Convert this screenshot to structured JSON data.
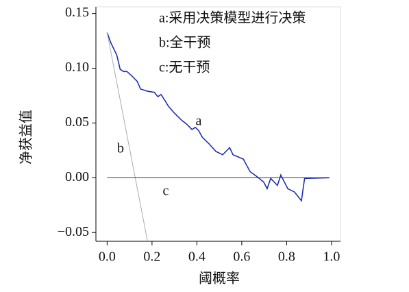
{
  "chart_data": {
    "type": "line",
    "xlabel": "阈概率",
    "ylabel": "净获益值",
    "legend_entries": [
      "a:采用决策模型进行决策",
      "b:全干预",
      "c:无干预"
    ],
    "annotations": [
      "a",
      "b",
      "c"
    ],
    "xlim": [
      -0.05,
      1.04
    ],
    "ylim": [
      -0.058,
      0.156
    ],
    "xticks": [
      {
        "value": 0,
        "label": "0.0"
      },
      0.2,
      0.4,
      0.6,
      0.8,
      {
        "value": 1,
        "label": "1.0"
      }
    ],
    "yticks": [
      {
        "value": -0.05,
        "label": "−0.05"
      },
      {
        "value": 0,
        "label": "0.00"
      },
      0.05,
      {
        "value": 0.1,
        "label": "0.10"
      },
      0.15
    ],
    "series": [
      {
        "name": "a",
        "color": "#1f2fb5",
        "x": [
          0,
          0.018,
          0.043,
          0.058,
          0.073,
          0.088,
          0.11,
          0.134,
          0.149,
          0.18,
          0.21,
          0.226,
          0.24,
          0.256,
          0.274,
          0.3,
          0.332,
          0.354,
          0.378,
          0.393,
          0.408,
          0.424,
          0.454,
          0.485,
          0.515,
          0.546,
          0.561,
          0.607,
          0.637,
          0.668,
          0.698,
          0.713,
          0.729,
          0.759,
          0.774,
          0.805,
          0.835,
          0.866,
          0.88,
          0.99
        ],
        "values": [
          0.1325,
          0.1225,
          0.112,
          0.099,
          0.097,
          0.097,
          0.093,
          0.088,
          0.081,
          0.079,
          0.078,
          0.074,
          0.076,
          0.071,
          0.065,
          0.059,
          0.0525,
          0.049,
          0.044,
          0.046,
          0.043,
          0.037,
          0.031,
          0.024,
          0.021,
          0.0275,
          0.021,
          0.017,
          0.0056,
          0.001,
          -0.004,
          -0.01,
          -0.0006,
          -0.007,
          0.0025,
          -0.01,
          -0.013,
          -0.021,
          -0.0006,
          0
        ]
      },
      {
        "name": "b",
        "color": "#aaaaaa",
        "x": [
          0,
          0.18
        ],
        "values": [
          0.1325,
          -0.058
        ]
      },
      {
        "name": "c",
        "color": "#333333",
        "x": [
          0,
          0.99
        ],
        "values": [
          0,
          0
        ]
      }
    ]
  }
}
